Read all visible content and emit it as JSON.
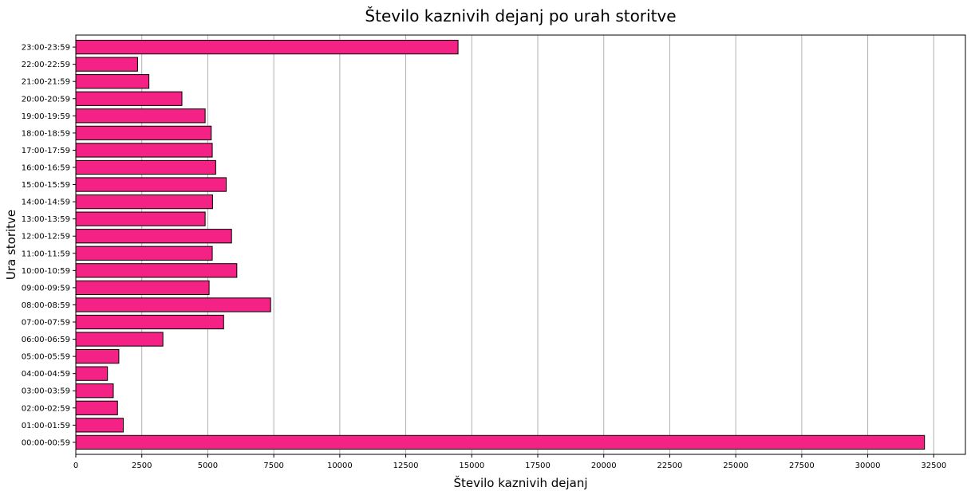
{
  "chart_data": {
    "type": "bar",
    "orientation": "horizontal",
    "title": "Število kaznivih dejanj po urah storitve",
    "xlabel": "Število kaznivih dejanj",
    "ylabel": "Ura storitve",
    "xlim": [
      0,
      33700
    ],
    "xticks": [
      0,
      2500,
      5000,
      7500,
      10000,
      12500,
      15000,
      17500,
      20000,
      22500,
      25000,
      27500,
      30000,
      32500
    ],
    "grid": "x",
    "bar_color": "#f42285",
    "bar_edge_color": "#000000",
    "categories": [
      "00:00-00:59",
      "01:00-01:59",
      "02:00-02:59",
      "03:00-03:59",
      "04:00-04:59",
      "05:00-05:59",
      "06:00-06:59",
      "07:00-07:59",
      "08:00-08:59",
      "09:00-09:59",
      "10:00-10:59",
      "11:00-11:59",
      "12:00-12:59",
      "13:00-13:59",
      "14:00-14:59",
      "15:00-15:59",
      "16:00-16:59",
      "17:00-17:59",
      "18:00-18:59",
      "19:00-19:59",
      "20:00-20:59",
      "21:00-21:59",
      "22:00-22:59",
      "23:00-23:59"
    ],
    "values": [
      32150,
      1800,
      1580,
      1420,
      1200,
      1630,
      3300,
      5600,
      7380,
      5050,
      6100,
      5170,
      5900,
      4900,
      5180,
      5700,
      5300,
      5170,
      5130,
      4900,
      4020,
      2770,
      2340,
      14480
    ]
  }
}
